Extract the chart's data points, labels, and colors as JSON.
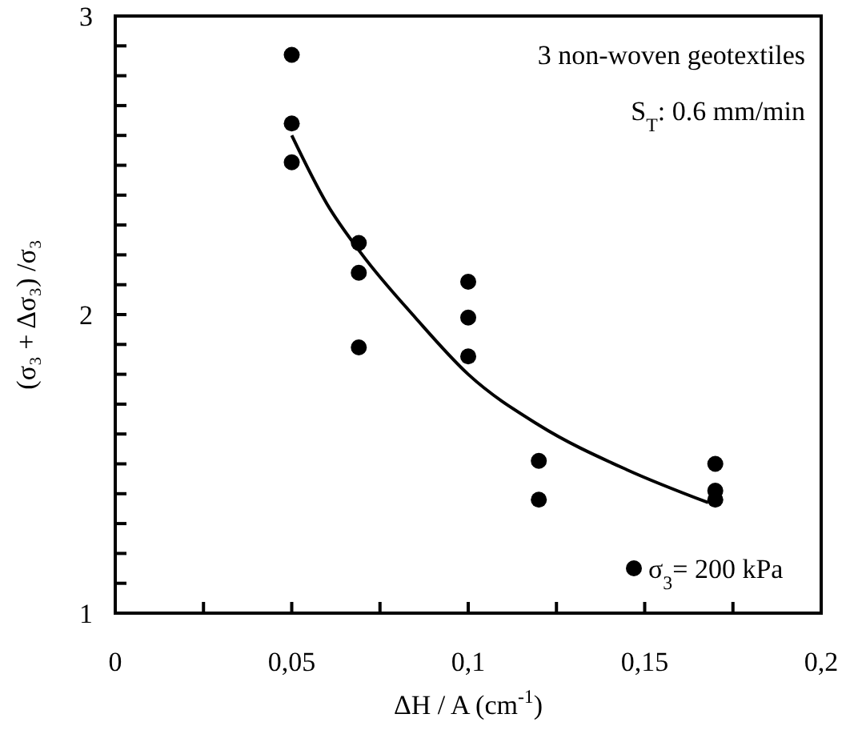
{
  "chart_data": {
    "type": "scatter",
    "xlabel": "ΔH / A  (cm$^{-1}$)",
    "ylabel": "(σ₃ + Δσ₃) /σ₃",
    "annotations": [
      "3 non-woven geotextiles",
      "S$_{T}$: 0.6 mm/min"
    ],
    "xlim": [
      0,
      0.2
    ],
    "ylim": [
      1,
      3
    ],
    "xticks": [
      0,
      {
        "value": 0.025,
        "label": null
      },
      {
        "value": 0.05,
        "label": "0,05"
      },
      {
        "value": 0.075,
        "label": null
      },
      {
        "value": 0.1,
        "label": "0,1"
      },
      {
        "value": 0.125,
        "label": null
      },
      {
        "value": 0.15,
        "label": "0,15"
      },
      {
        "value": 0.175,
        "label": null
      },
      {
        "value": 0.2,
        "label": "0,2"
      }
    ],
    "yticks": [
      1,
      {
        "value": 1.1,
        "label": null
      },
      {
        "value": 1.2,
        "label": null
      },
      {
        "value": 1.3,
        "label": null
      },
      {
        "value": 1.4,
        "label": null
      },
      {
        "value": 1.5,
        "label": null
      },
      {
        "value": 1.6,
        "label": null
      },
      {
        "value": 1.7,
        "label": null
      },
      {
        "value": 1.8,
        "label": null
      },
      {
        "value": 1.9,
        "label": null
      },
      2,
      {
        "value": 2.1,
        "label": null
      },
      {
        "value": 2.2,
        "label": null
      },
      {
        "value": 2.3,
        "label": null
      },
      {
        "value": 2.4,
        "label": null
      },
      {
        "value": 2.5,
        "label": null
      },
      {
        "value": 2.6,
        "label": null
      },
      {
        "value": 2.7,
        "label": null
      },
      {
        "value": 2.8,
        "label": null
      },
      {
        "value": 2.9,
        "label": null
      },
      3
    ],
    "grid": false,
    "legend": "bottom right",
    "marker": "circle",
    "series": [
      {
        "name": "σ$_{3}$= 200 kPa",
        "color": "#000000",
        "x": [
          0.05,
          0.05,
          0.05,
          0.069,
          0.069,
          0.069,
          0.1,
          0.1,
          0.1,
          0.12,
          0.12,
          0.17,
          0.17,
          0.17
        ],
        "values": [
          2.87,
          2.64,
          2.51,
          2.24,
          2.14,
          1.89,
          2.11,
          1.99,
          1.86,
          1.51,
          1.38,
          1.5,
          1.41,
          1.38
        ]
      },
      {
        "type": "line",
        "color": "#000000",
        "marker": "none",
        "line_style": "solid",
        "x": [
          0.05,
          0.06,
          0.07,
          0.085,
          0.1,
          0.12,
          0.145,
          0.168
        ],
        "values": [
          2.6,
          2.37,
          2.2,
          1.99,
          1.8,
          1.63,
          1.48,
          1.37
        ]
      }
    ]
  }
}
